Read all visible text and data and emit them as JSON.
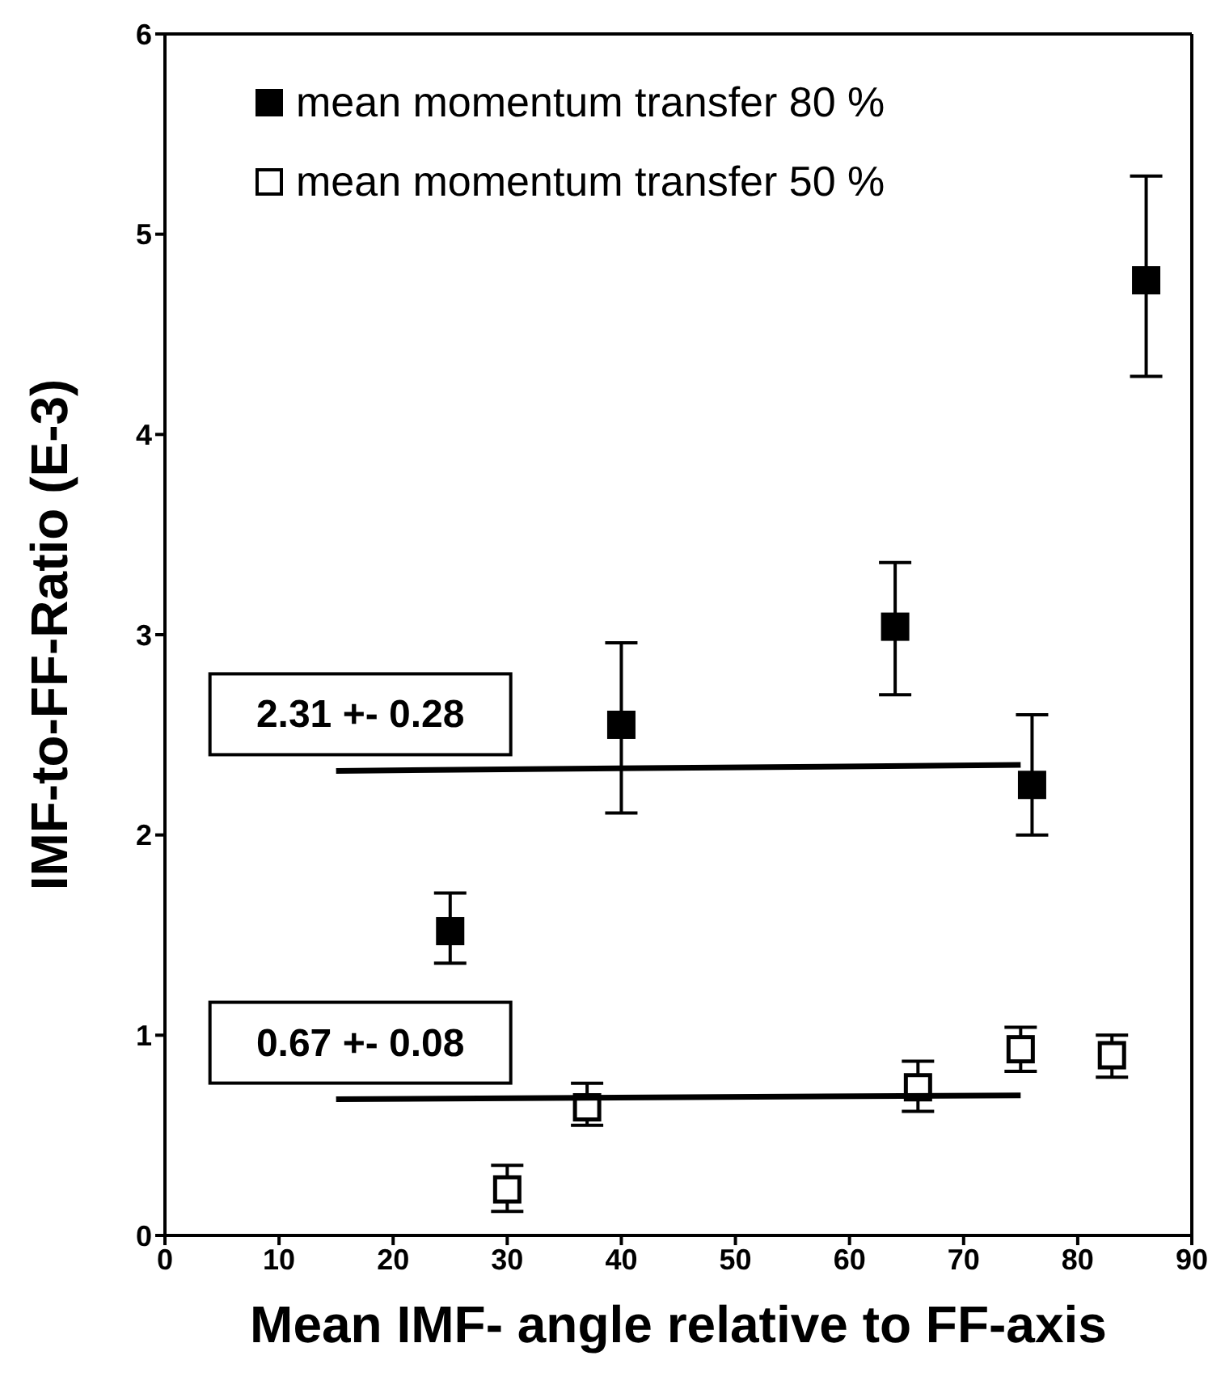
{
  "chart_data": {
    "type": "scatter",
    "xlabel": "Mean IMF- angle relative to FF-axis",
    "ylabel": "IMF-to-FF-Ratio (E-3)",
    "xlim": [
      0,
      90
    ],
    "xticks": [
      0,
      10,
      20,
      30,
      40,
      50,
      60,
      70,
      80,
      90
    ],
    "ylim": [
      0,
      6
    ],
    "yticks": [
      0,
      1,
      2,
      3,
      4,
      5,
      6
    ],
    "grid": false,
    "legend": "top left",
    "marker": "square",
    "series": [
      {
        "name": "mean momentum transfer 80 %",
        "color": "#000000",
        "x": [
          25,
          40,
          64,
          76,
          86
        ],
        "values": [
          1.52,
          2.55,
          3.04,
          2.25,
          4.77
        ],
        "errors": [
          [
            1.36,
            1.71
          ],
          [
            2.11,
            2.96
          ],
          [
            2.7,
            3.36
          ],
          [
            2.0,
            2.6
          ],
          [
            4.29,
            5.29
          ]
        ]
      },
      {
        "name": "mean momentum transfer 50 %",
        "color": "#ffffff",
        "x": [
          30,
          37,
          66,
          75,
          83
        ],
        "values": [
          0.23,
          0.64,
          0.74,
          0.93,
          0.9
        ],
        "errors": [
          [
            0.12,
            0.35
          ],
          [
            0.55,
            0.76
          ],
          [
            0.62,
            0.87
          ],
          [
            0.82,
            1.04
          ],
          [
            0.79,
            1.0
          ]
        ]
      },
      {
        "type": "line",
        "marker": "none",
        "color": "#000000",
        "x": [
          15,
          75
        ],
        "values": [
          2.32,
          2.35
        ]
      },
      {
        "type": "line",
        "marker": "none",
        "color": "#000000",
        "x": [
          15,
          75
        ],
        "values": [
          0.68,
          0.7
        ]
      }
    ],
    "annotations": [
      {
        "text": "2.31 +- 0.28",
        "x": 15,
        "y": 2.32
      },
      {
        "text": "0.67 +- 0.08",
        "x": 15,
        "y": 0.68
      }
    ]
  }
}
